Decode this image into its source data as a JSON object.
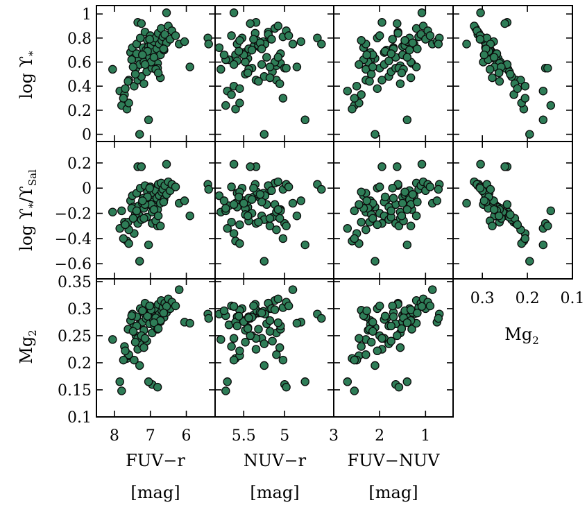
{
  "figure": {
    "y_titles": {
      "row0": {
        "base": "log ϒ",
        "sub": "*"
      },
      "row1": {
        "base": "log ϒ",
        "sub": "*",
        "mid": "/ϒ",
        "sub2": "Sal"
      },
      "row2": {
        "base": "Mg",
        "sub": "2"
      }
    },
    "x_titles": {
      "col0": {
        "name": "FUV−r",
        "unit": "[mag]"
      },
      "col1": {
        "name": "NUV−r",
        "unit": "[mag]"
      },
      "col2": {
        "name": "FUV−NUV",
        "unit": "[mag]"
      },
      "col3": {
        "name": "Mg",
        "sub": "2"
      }
    },
    "marker_color": "#2e7d57",
    "marker_edge": "#0a0a0a"
  },
  "chart_data": {
    "type": "scatter",
    "layout": "3x4 grid, bottom-right panel empty",
    "grid": false,
    "legend": "none",
    "x_axes": [
      {
        "col": 0,
        "label": "FUV−r [mag]",
        "range": [
          8.5,
          5.2
        ],
        "ticks": [
          8,
          7,
          6
        ],
        "tick_labels": [
          "8",
          "7",
          "6"
        ],
        "reversed": true
      },
      {
        "col": 1,
        "label": "NUV−r [mag]",
        "range": [
          5.85,
          4.4
        ],
        "ticks": [
          5.5,
          5
        ],
        "tick_labels": [
          "5.5",
          "5"
        ],
        "reversed": true
      },
      {
        "col": 2,
        "label": "FUV−NUV [mag]",
        "range": [
          3.0,
          0.4
        ],
        "ticks": [
          3,
          2,
          1
        ],
        "tick_labels": [
          "3",
          "2",
          "1"
        ],
        "reversed": true
      },
      {
        "col": 3,
        "label": "Mg2",
        "range": [
          0.365,
          0.1
        ],
        "ticks": [
          0.3,
          0.2,
          0.1
        ],
        "tick_labels": [
          "0.3",
          "0.2",
          "0.1"
        ],
        "reversed": true
      }
    ],
    "y_axes": [
      {
        "row": 0,
        "label": "log ϒ*",
        "range": [
          -0.06,
          1.07
        ],
        "ticks": [
          0,
          0.2,
          0.4,
          0.6,
          0.8,
          1
        ],
        "tick_labels": [
          "0",
          "0.2",
          "0.4",
          "0.6",
          "0.8",
          "1"
        ]
      },
      {
        "row": 1,
        "label": "log ϒ*/ϒSal",
        "range": [
          -0.72,
          0.37
        ],
        "ticks": [
          -0.6,
          -0.4,
          -0.2,
          0,
          0.2
        ],
        "tick_labels": [
          "−0.6",
          "−0.4",
          "−0.2",
          "0",
          "0.2"
        ]
      },
      {
        "row": 2,
        "label": "Mg2",
        "range": [
          0.1,
          0.355
        ],
        "ticks": [
          0.1,
          0.15,
          0.2,
          0.25,
          0.3,
          0.35
        ],
        "tick_labels": [
          "0.1",
          "0.15",
          "0.2",
          "0.25",
          "0.3",
          "0.35"
        ]
      }
    ],
    "galaxies": [
      {
        "fuvr": 8.05,
        "nuvr": 5.78,
        "fuvnuv": 2.3,
        "mg2": 0.243,
        "logY": 0.54,
        "logYr": -0.19
      },
      {
        "fuvr": 7.85,
        "nuvr": 5.7,
        "fuvnuv": 2.7,
        "mg2": 0.165,
        "logY": 0.36,
        "logYr": -0.32
      },
      {
        "fuvr": 7.8,
        "nuvr": 5.72,
        "fuvnuv": 2.55,
        "mg2": 0.148,
        "logY": 0.24,
        "logYr": -0.18
      },
      {
        "fuvr": 7.72,
        "nuvr": 5.65,
        "fuvnuv": 2.4,
        "mg2": 0.23,
        "logY": 0.33,
        "logYr": -0.27
      },
      {
        "fuvr": 7.65,
        "nuvr": 5.6,
        "fuvnuv": 2.6,
        "mg2": 0.208,
        "logY": 0.21,
        "logYr": -0.42
      },
      {
        "fuvr": 7.6,
        "nuvr": 5.55,
        "fuvnuv": 2.45,
        "mg2": 0.213,
        "logY": 0.26,
        "logYr": -0.44
      },
      {
        "fuvr": 7.55,
        "nuvr": 5.5,
        "fuvnuv": 2.2,
        "mg2": 0.278,
        "logY": 0.68,
        "logYr": -0.1
      },
      {
        "fuvr": 7.5,
        "nuvr": 5.8,
        "fuvnuv": 2.35,
        "mg2": 0.29,
        "logY": 0.72,
        "logYr": -0.06
      },
      {
        "fuvr": 7.48,
        "nuvr": 5.45,
        "fuvnuv": 2.1,
        "mg2": 0.265,
        "logY": 0.63,
        "logYr": -0.15
      },
      {
        "fuvr": 7.45,
        "nuvr": 5.62,
        "fuvnuv": 2.5,
        "mg2": 0.205,
        "logY": 0.4,
        "logYr": -0.36
      },
      {
        "fuvr": 7.4,
        "nuvr": 5.4,
        "fuvnuv": 2.0,
        "mg2": 0.25,
        "logY": 0.55,
        "logYr": -0.2
      },
      {
        "fuvr": 7.38,
        "nuvr": 5.58,
        "fuvnuv": 2.3,
        "mg2": 0.285,
        "logY": 0.75,
        "logYr": -0.04
      },
      {
        "fuvr": 7.35,
        "nuvr": 5.35,
        "fuvnuv": 1.95,
        "mg2": 0.225,
        "logY": 0.45,
        "logYr": -0.28
      },
      {
        "fuvr": 7.32,
        "nuvr": 5.68,
        "fuvnuv": 2.2,
        "mg2": 0.27,
        "logY": 0.62,
        "logYr": -0.14
      },
      {
        "fuvr": 7.3,
        "nuvr": 5.28,
        "fuvnuv": 1.9,
        "mg2": 0.245,
        "logY": 0.58,
        "logYr": -0.22
      },
      {
        "fuvr": 7.28,
        "nuvr": 5.52,
        "fuvnuv": 2.05,
        "mg2": 0.3,
        "logY": 0.8,
        "logYr": 0.0
      },
      {
        "fuvr": 7.25,
        "nuvr": 5.25,
        "fuvnuv": 1.8,
        "mg2": 0.235,
        "logY": 0.48,
        "logYr": -0.25
      },
      {
        "fuvr": 7.22,
        "nuvr": 5.6,
        "fuvnuv": 2.15,
        "mg2": 0.275,
        "logY": 0.66,
        "logYr": -0.12
      },
      {
        "fuvr": 7.2,
        "nuvr": 5.3,
        "fuvnuv": 1.7,
        "mg2": 0.293,
        "logY": 0.72,
        "logYr": -0.08
      },
      {
        "fuvr": 7.18,
        "nuvr": 5.48,
        "fuvnuv": 2.25,
        "mg2": 0.26,
        "logY": 0.6,
        "logYr": -0.16
      },
      {
        "fuvr": 7.15,
        "nuvr": 5.2,
        "fuvnuv": 1.6,
        "mg2": 0.31,
        "logY": 0.85,
        "logYr": 0.02
      },
      {
        "fuvr": 7.12,
        "nuvr": 5.42,
        "fuvnuv": 1.85,
        "mg2": 0.282,
        "logY": 0.7,
        "logYr": -0.09
      },
      {
        "fuvr": 7.1,
        "nuvr": 5.15,
        "fuvnuv": 1.75,
        "mg2": 0.24,
        "logY": 0.52,
        "logYr": -0.23
      },
      {
        "fuvr": 7.08,
        "nuvr": 5.55,
        "fuvnuv": 2.4,
        "mg2": 0.297,
        "logY": 0.78,
        "logYr": -0.03
      },
      {
        "fuvr": 7.05,
        "nuvr": 5.38,
        "fuvnuv": 1.5,
        "mg2": 0.288,
        "logY": 0.73,
        "logYr": -0.07
      },
      {
        "fuvr": 7.02,
        "nuvr": 5.22,
        "fuvnuv": 1.65,
        "mg2": 0.272,
        "logY": 0.64,
        "logYr": -0.13
      },
      {
        "fuvr": 7.0,
        "nuvr": 5.65,
        "fuvnuv": 2.0,
        "mg2": 0.305,
        "logY": 0.82,
        "logYr": 0.01
      },
      {
        "fuvr": 6.98,
        "nuvr": 5.32,
        "fuvnuv": 1.45,
        "mg2": 0.292,
        "logY": 0.74,
        "logYr": -0.05
      },
      {
        "fuvr": 6.95,
        "nuvr": 5.1,
        "fuvnuv": 1.55,
        "mg2": 0.255,
        "logY": 0.57,
        "logYr": -0.19
      },
      {
        "fuvr": 6.92,
        "nuvr": 5.46,
        "fuvnuv": 1.9,
        "mg2": 0.28,
        "logY": 0.68,
        "logYr": -0.11
      },
      {
        "fuvr": 6.9,
        "nuvr": 5.26,
        "fuvnuv": 1.4,
        "mg2": 0.295,
        "logY": 0.77,
        "logYr": -0.04
      },
      {
        "fuvr": 6.88,
        "nuvr": 5.58,
        "fuvnuv": 1.8,
        "mg2": 0.268,
        "logY": 0.61,
        "logYr": -0.15
      },
      {
        "fuvr": 6.85,
        "nuvr": 5.18,
        "fuvnuv": 1.35,
        "mg2": 0.3,
        "logY": 0.8,
        "logYr": -0.02
      },
      {
        "fuvr": 6.82,
        "nuvr": 5.44,
        "fuvnuv": 1.7,
        "mg2": 0.285,
        "logY": 0.71,
        "logYr": -0.08
      },
      {
        "fuvr": 6.8,
        "nuvr": 5.05,
        "fuvnuv": 1.3,
        "mg2": 0.262,
        "logY": 0.59,
        "logYr": -0.17
      },
      {
        "fuvr": 6.78,
        "nuvr": 5.36,
        "fuvnuv": 1.6,
        "mg2": 0.308,
        "logY": 0.84,
        "logYr": 0.03
      },
      {
        "fuvr": 6.75,
        "nuvr": 5.24,
        "fuvnuv": 1.25,
        "mg2": 0.29,
        "logY": 0.75,
        "logYr": -0.06
      },
      {
        "fuvr": 6.72,
        "nuvr": 5.5,
        "fuvnuv": 1.5,
        "mg2": 0.276,
        "logY": 0.66,
        "logYr": -0.12
      },
      {
        "fuvr": 6.7,
        "nuvr": 5.12,
        "fuvnuv": 1.2,
        "mg2": 0.315,
        "logY": 0.88,
        "logYr": 0.04
      },
      {
        "fuvr": 6.68,
        "nuvr": 5.34,
        "fuvnuv": 1.45,
        "mg2": 0.296,
        "logY": 0.78,
        "logYr": -0.03
      },
      {
        "fuvr": 6.65,
        "nuvr": 5.02,
        "fuvnuv": 1.15,
        "mg2": 0.302,
        "logY": 0.81,
        "logYr": -0.01
      },
      {
        "fuvr": 6.62,
        "nuvr": 5.4,
        "fuvnuv": 1.35,
        "mg2": 0.284,
        "logY": 0.7,
        "logYr": -0.09
      },
      {
        "fuvr": 6.6,
        "nuvr": 5.2,
        "fuvnuv": 1.1,
        "mg2": 0.31,
        "logY": 0.83,
        "logYr": 0.02
      },
      {
        "fuvr": 6.55,
        "nuvr": 5.3,
        "fuvnuv": 1.28,
        "mg2": 0.293,
        "logY": 0.76,
        "logYr": -0.05
      },
      {
        "fuvr": 6.5,
        "nuvr": 5.08,
        "fuvnuv": 1.05,
        "mg2": 0.318,
        "logY": 0.9,
        "logYr": 0.05
      },
      {
        "fuvr": 6.45,
        "nuvr": 5.16,
        "fuvnuv": 1.0,
        "mg2": 0.3,
        "logY": 0.79,
        "logYr": -0.02
      },
      {
        "fuvr": 6.4,
        "nuvr": 4.98,
        "fuvnuv": 0.95,
        "mg2": 0.312,
        "logY": 0.86,
        "logYr": 0.03
      },
      {
        "fuvr": 6.3,
        "nuvr": 4.95,
        "fuvnuv": 0.9,
        "mg2": 0.305,
        "logY": 0.82,
        "logYr": 0.01
      },
      {
        "fuvr": 6.2,
        "nuvr": 4.9,
        "fuvnuv": 0.85,
        "mg2": 0.335,
        "logY": 0.75,
        "logYr": -0.12
      },
      {
        "fuvr": 6.05,
        "nuvr": 4.8,
        "fuvnuv": 0.75,
        "mg2": 0.275,
        "logY": 0.77,
        "logYr": -0.1
      },
      {
        "fuvr": 5.9,
        "nuvr": 4.85,
        "fuvnuv": 1.2,
        "mg2": 0.273,
        "logY": 0.56,
        "logYr": -0.22
      },
      {
        "fuvr": 5.4,
        "nuvr": 4.6,
        "fuvnuv": 0.7,
        "mg2": 0.29,
        "logY": 0.8,
        "logYr": 0.03
      },
      {
        "fuvr": 5.38,
        "nuvr": 4.55,
        "fuvnuv": 0.72,
        "mg2": 0.282,
        "logY": 0.75,
        "logYr": -0.01
      },
      {
        "fuvr": 6.95,
        "nuvr": 5.0,
        "fuvnuv": 1.65,
        "mg2": 0.16,
        "logY": 0.55,
        "logYr": -0.28
      },
      {
        "fuvr": 6.8,
        "nuvr": 4.98,
        "fuvnuv": 1.58,
        "mg2": 0.155,
        "logY": 0.55,
        "logYr": -0.3
      },
      {
        "fuvr": 7.05,
        "nuvr": 4.75,
        "fuvnuv": 1.4,
        "mg2": 0.165,
        "logY": 0.12,
        "logYr": -0.45
      },
      {
        "fuvr": 7.3,
        "nuvr": 5.25,
        "fuvnuv": 2.1,
        "mg2": 0.195,
        "logY": 0.0,
        "logYr": -0.58
      },
      {
        "fuvr": 7.6,
        "nuvr": 5.1,
        "fuvnuv": 2.3,
        "mg2": 0.215,
        "logY": 0.45,
        "logYr": -0.33
      },
      {
        "fuvr": 7.75,
        "nuvr": 5.02,
        "fuvnuv": 2.55,
        "mg2": 0.205,
        "logY": 0.3,
        "logYr": -0.4
      },
      {
        "fuvr": 7.35,
        "nuvr": 5.35,
        "fuvnuv": 1.95,
        "mg2": 0.245,
        "logY": 0.93,
        "logYr": 0.17
      },
      {
        "fuvr": 7.25,
        "nuvr": 5.42,
        "fuvnuv": 1.62,
        "mg2": 0.25,
        "logY": 0.92,
        "logYr": 0.17
      },
      {
        "fuvr": 6.55,
        "nuvr": 5.62,
        "fuvnuv": 1.08,
        "mg2": 0.304,
        "logY": 1.01,
        "logYr": 0.19
      },
      {
        "fuvr": 7.18,
        "nuvr": 5.06,
        "fuvnuv": 1.55,
        "mg2": 0.228,
        "logY": 0.42,
        "logYr": -0.24
      },
      {
        "fuvr": 7.42,
        "nuvr": 5.48,
        "fuvnuv": 2.18,
        "mg2": 0.238,
        "logY": 0.5,
        "logYr": -0.21
      },
      {
        "fuvr": 7.08,
        "nuvr": 5.56,
        "fuvnuv": 1.88,
        "mg2": 0.286,
        "logY": 0.69,
        "logYr": -0.07
      },
      {
        "fuvr": 6.98,
        "nuvr": 5.12,
        "fuvnuv": 1.32,
        "mg2": 0.298,
        "logY": 0.6,
        "logYr": -0.13
      },
      {
        "fuvr": 7.52,
        "nuvr": 5.72,
        "fuvnuv": 2.35,
        "mg2": 0.287,
        "logY": 0.62,
        "logYr": -0.16
      },
      {
        "fuvr": 7.62,
        "nuvr": 5.32,
        "fuvnuv": 2.22,
        "mg2": 0.262,
        "logY": 0.44,
        "logYr": -0.27
      },
      {
        "fuvr": 6.85,
        "nuvr": 5.44,
        "fuvnuv": 1.48,
        "mg2": 0.283,
        "logY": 0.54,
        "logYr": -0.26
      },
      {
        "fuvr": 6.72,
        "nuvr": 5.18,
        "fuvnuv": 1.32,
        "mg2": 0.278,
        "logY": 0.47,
        "logYr": -0.3
      },
      {
        "fuvr": 7.15,
        "nuvr": 5.62,
        "fuvnuv": 2.45,
        "mg2": 0.245,
        "logY": 0.58,
        "logYr": -0.13
      },
      {
        "fuvr": 7.38,
        "nuvr": 5.05,
        "fuvnuv": 1.75,
        "mg2": 0.268,
        "logY": 0.67,
        "logYr": -0.18
      },
      {
        "fuvr": 7.7,
        "nuvr": 5.55,
        "fuvnuv": 2.05,
        "mg2": 0.222,
        "logY": 0.38,
        "logYr": -0.29
      },
      {
        "fuvr": 6.63,
        "nuvr": 5.28,
        "fuvnuv": 1.18,
        "mg2": 0.292,
        "logY": 0.71,
        "logYr": -0.11
      },
      {
        "fuvr": 7.48,
        "nuvr": 5.18,
        "fuvnuv": 2.15,
        "mg2": 0.258,
        "logY": 0.56,
        "logYr": -0.24
      },
      {
        "fuvr": 6.9,
        "nuvr": 5.08,
        "fuvnuv": 1.4,
        "mg2": 0.274,
        "logY": 0.64,
        "logYr": -0.17
      },
      {
        "fuvr": 7.02,
        "nuvr": 5.38,
        "fuvnuv": 1.72,
        "mg2": 0.305,
        "logY": 0.79,
        "logYr": 0.0
      },
      {
        "fuvr": 7.22,
        "nuvr": 5.74,
        "fuvnuv": 2.28,
        "mg2": 0.296,
        "logY": 0.66,
        "logYr": -0.1
      },
      {
        "fuvr": 6.78,
        "nuvr": 5.45,
        "fuvnuv": 1.52,
        "mg2": 0.263,
        "logY": 0.51,
        "logYr": -0.22
      }
    ]
  }
}
